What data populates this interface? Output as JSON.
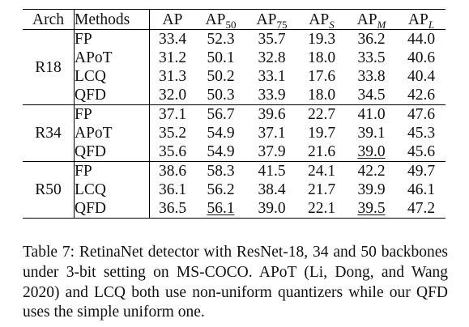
{
  "header": {
    "arch": "Arch",
    "methods": "Methods",
    "cols": [
      {
        "base": "AP",
        "sub": "",
        "italic": false
      },
      {
        "base": "AP",
        "sub": "50",
        "italic": false
      },
      {
        "base": "AP",
        "sub": "75",
        "italic": false
      },
      {
        "base": "AP",
        "sub": "S",
        "italic": true
      },
      {
        "base": "AP",
        "sub": "M",
        "italic": true
      },
      {
        "base": "AP",
        "sub": "L",
        "italic": true
      }
    ]
  },
  "groups": [
    {
      "arch": "R18",
      "rows": [
        {
          "method": "FP",
          "values": [
            "33.4",
            "52.3",
            "35.7",
            "19.3",
            "36.2",
            "44.0"
          ],
          "bold": [],
          "underline": []
        },
        {
          "method": "APoT",
          "values": [
            "31.2",
            "50.1",
            "32.8",
            "18.0",
            "33.5",
            "40.6"
          ],
          "bold": [],
          "underline": []
        },
        {
          "method": "LCQ",
          "values": [
            "31.3",
            "50.2",
            "33.1",
            "17.6",
            "33.8",
            "40.4"
          ],
          "bold": [],
          "underline": []
        },
        {
          "method": "QFD",
          "values": [
            "32.0",
            "50.3",
            "33.9",
            "18.0",
            "34.5",
            "42.6"
          ],
          "bold": [
            0,
            1,
            2,
            3,
            4,
            5
          ],
          "underline": []
        }
      ]
    },
    {
      "arch": "R34",
      "rows": [
        {
          "method": "FP",
          "values": [
            "37.1",
            "56.7",
            "39.6",
            "22.7",
            "41.0",
            "47.6"
          ],
          "bold": [],
          "underline": []
        },
        {
          "method": "APoT",
          "values": [
            "35.2",
            "54.9",
            "37.1",
            "19.7",
            "39.1",
            "45.3"
          ],
          "bold": [
            4
          ],
          "underline": []
        },
        {
          "method": "QFD",
          "values": [
            "35.6",
            "54.9",
            "37.9",
            "21.6",
            "39.0",
            "45.6"
          ],
          "bold": [
            0,
            1,
            2,
            3,
            5
          ],
          "underline": [
            4
          ]
        }
      ]
    },
    {
      "arch": "R50",
      "rows": [
        {
          "method": "FP",
          "values": [
            "38.6",
            "58.3",
            "41.5",
            "24.1",
            "42.2",
            "49.7"
          ],
          "bold": [],
          "underline": []
        },
        {
          "method": "LCQ",
          "values": [
            "36.1",
            "56.2",
            "38.4",
            "21.7",
            "39.9",
            "46.1"
          ],
          "bold": [
            1,
            4
          ],
          "underline": []
        },
        {
          "method": "QFD",
          "values": [
            "36.5",
            "56.1",
            "39.0",
            "22.1",
            "39.5",
            "47.2"
          ],
          "bold": [
            0,
            2,
            3,
            5
          ],
          "underline": [
            1,
            4
          ]
        }
      ]
    }
  ],
  "caption": "Table 7: RetinaNet detector with ResNet-18, 34 and 50 backbones under 3-bit setting on MS-COCO. APoT (Li, Dong, and Wang 2020) and LCQ both use non-uniform quantizers while our QFD uses the simple uniform one."
}
